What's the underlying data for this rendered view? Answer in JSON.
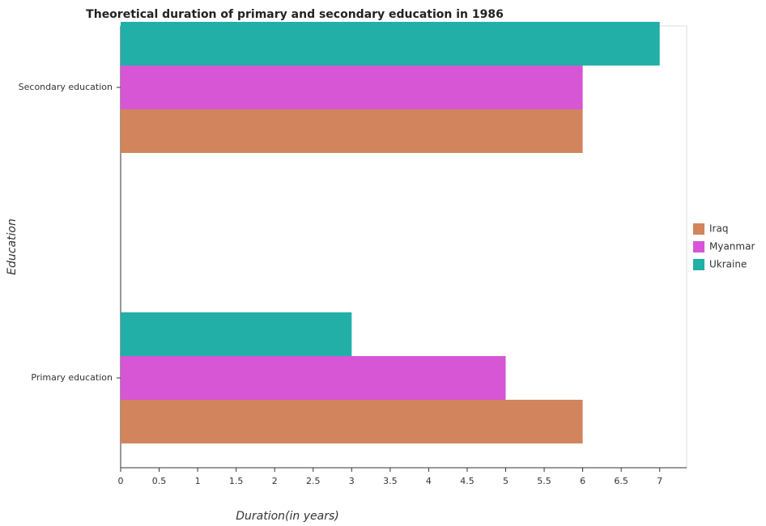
{
  "chart_data": {
    "type": "hbar",
    "title": "Theoretical duration of primary and secondary education in 1986",
    "x_label": "Duration(in years)",
    "y_label": "Education",
    "categories": [
      "Primary education",
      "Secondary education"
    ],
    "series": [
      {
        "name": "Iraq",
        "color": "#d2845c",
        "values": [
          6,
          6
        ]
      },
      {
        "name": "Myanmar",
        "color": "#d656d6",
        "values": [
          5,
          6
        ]
      },
      {
        "name": "Ukraine",
        "color": "#21afa8",
        "values": [
          3,
          7
        ]
      }
    ],
    "xlim": [
      0,
      7.35
    ],
    "xticks": [
      0,
      0.5,
      1,
      1.5,
      2,
      2.5,
      3,
      3.5,
      4,
      4.5,
      5,
      5.5,
      6,
      6.5,
      7
    ],
    "legend": "right",
    "grid": false
  }
}
